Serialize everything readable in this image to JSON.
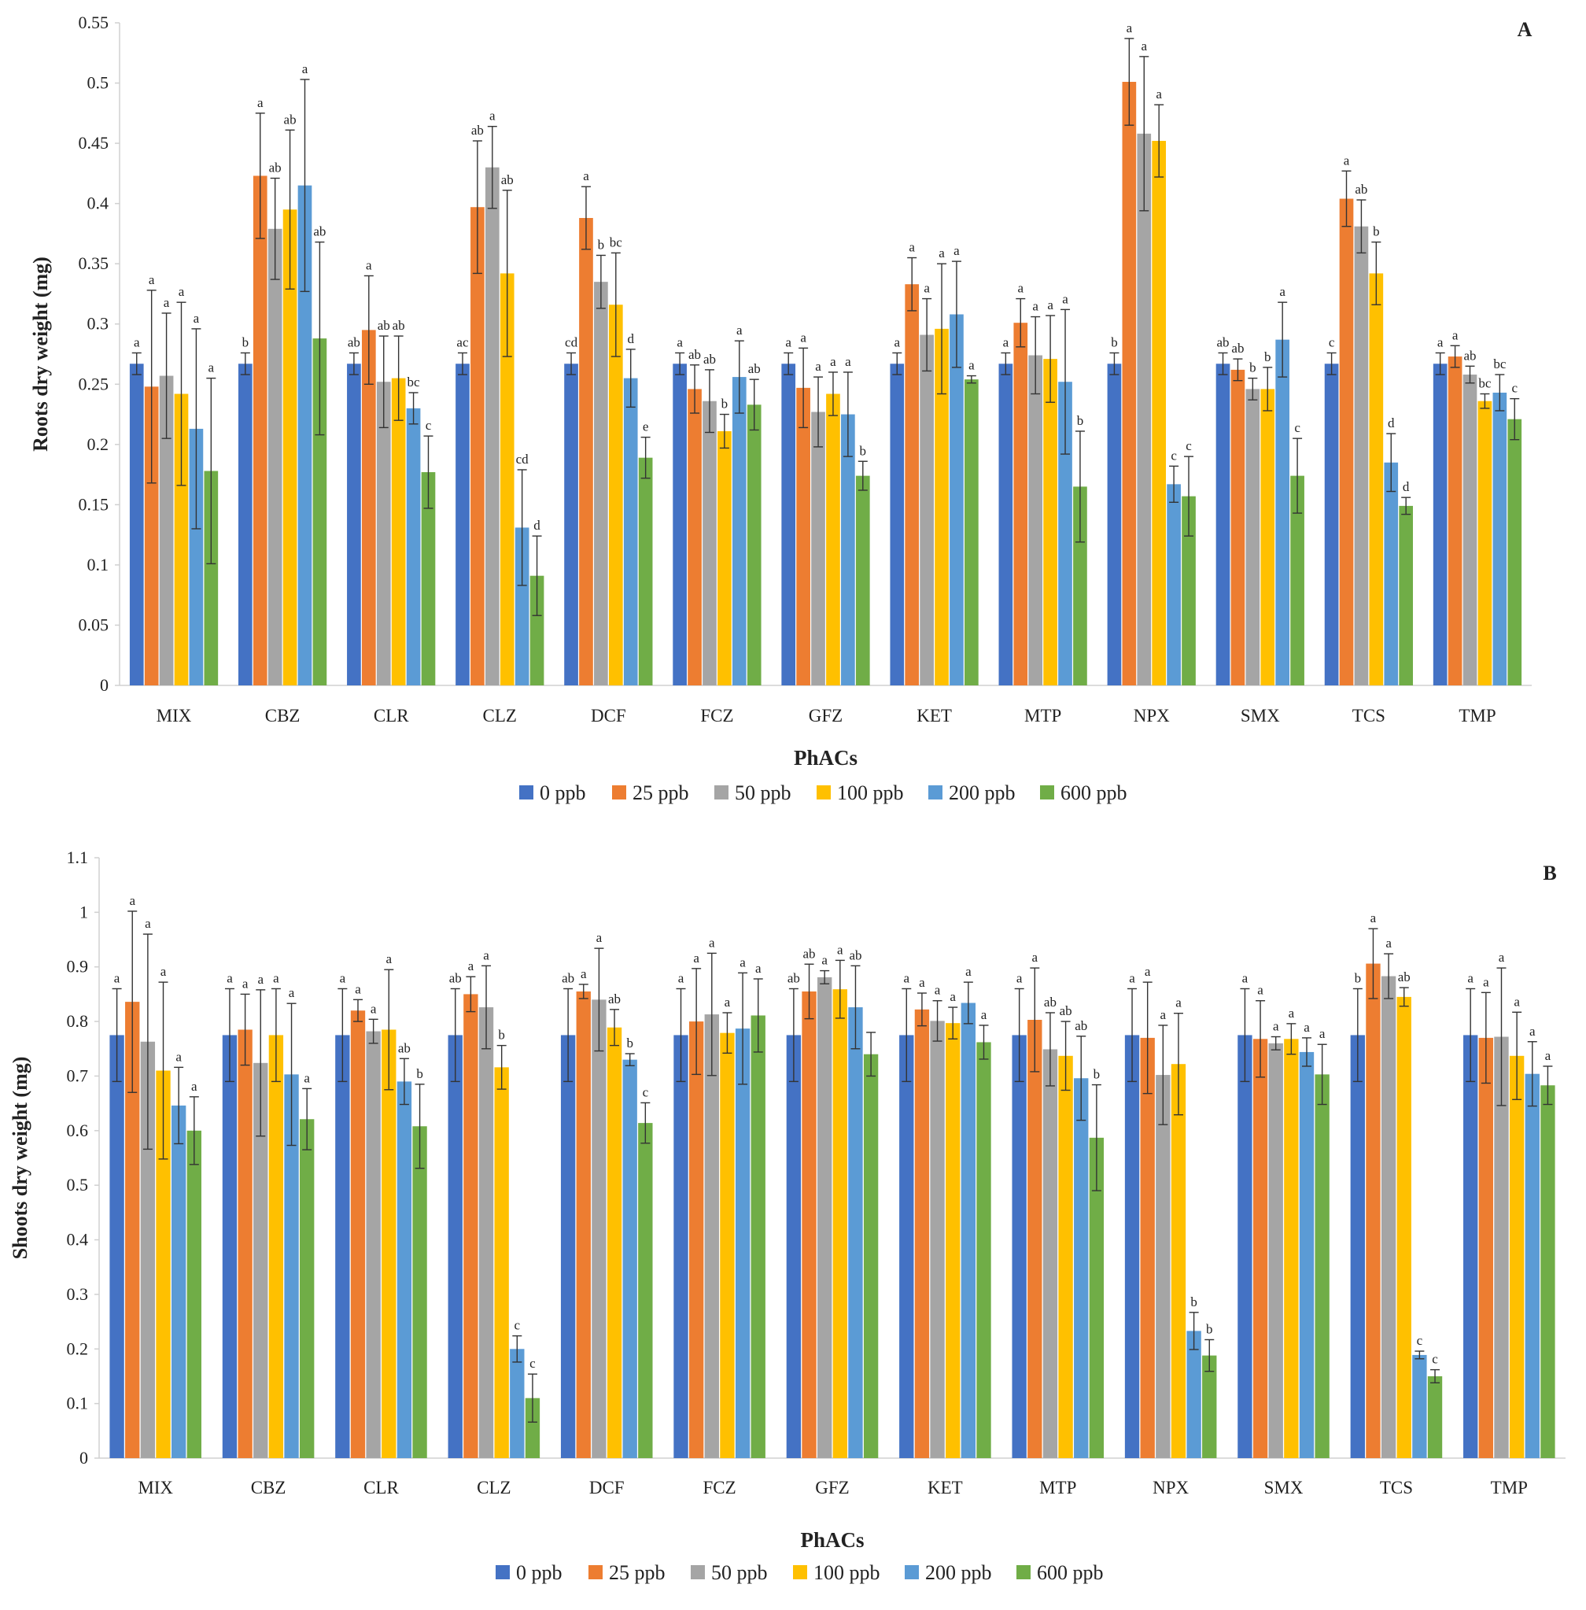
{
  "colors": [
    "#4472C4",
    "#ED7D31",
    "#A5A5A5",
    "#FFC000",
    "#5B9BD5",
    "#70AD47"
  ],
  "chart_data": [
    {
      "type": "bar",
      "panel_label": "A",
      "ylabel": "Roots dry weight  (mg)",
      "xlabel": "PhACs",
      "ylim": [
        0,
        0.55
      ],
      "yticks": [
        "0",
        "0.05",
        "0.1",
        "0.15",
        "0.2",
        "0.25",
        "0.3",
        "0.35",
        "0.4",
        "0.45",
        "0.5",
        "0.55"
      ],
      "grid": false,
      "legend_placement": "bottom",
      "categories": [
        "MIX",
        "CBZ",
        "CLR",
        "CLZ",
        "DCF",
        "FCZ",
        "GFZ",
        "KET",
        "MTP",
        "NPX",
        "SMX",
        "TCS",
        "TMP"
      ],
      "series": [
        {
          "name": "0 ppb",
          "values": [
            0.267,
            0.267,
            0.267,
            0.267,
            0.267,
            0.267,
            0.267,
            0.267,
            0.267,
            0.267,
            0.267,
            0.267,
            0.267
          ],
          "errors": [
            0.009,
            0.009,
            0.009,
            0.009,
            0.009,
            0.009,
            0.009,
            0.009,
            0.009,
            0.009,
            0.009,
            0.009,
            0.009
          ],
          "letters": [
            "a",
            "b",
            "ab",
            "ac",
            "cd",
            "a",
            "a",
            "a",
            "a",
            "b",
            "ab",
            "c",
            "a"
          ]
        },
        {
          "name": "25 ppb",
          "values": [
            0.248,
            0.423,
            0.295,
            0.397,
            0.388,
            0.246,
            0.247,
            0.333,
            0.301,
            0.501,
            0.262,
            0.404,
            0.273
          ],
          "errors": [
            0.08,
            0.052,
            0.045,
            0.055,
            0.026,
            0.02,
            0.033,
            0.022,
            0.02,
            0.036,
            0.009,
            0.023,
            0.009
          ],
          "letters": [
            "a",
            "a",
            "a",
            "ab",
            "a",
            "ab",
            "a",
            "a",
            "a",
            "a",
            "ab",
            "a",
            "a"
          ]
        },
        {
          "name": "50 ppb",
          "values": [
            0.257,
            0.379,
            0.252,
            0.43,
            0.335,
            0.236,
            0.227,
            0.291,
            0.274,
            0.458,
            0.246,
            0.381,
            0.258
          ],
          "errors": [
            0.052,
            0.042,
            0.038,
            0.034,
            0.022,
            0.026,
            0.029,
            0.03,
            0.032,
            0.064,
            0.009,
            0.022,
            0.007
          ],
          "letters": [
            "a",
            "ab",
            "ab",
            "a",
            "b",
            "ab",
            "a",
            "a",
            "a",
            "a",
            "b",
            "ab",
            "ab"
          ]
        },
        {
          "name": "100 ppb",
          "values": [
            0.242,
            0.395,
            0.255,
            0.342,
            0.316,
            0.211,
            0.242,
            0.296,
            0.271,
            0.452,
            0.246,
            0.342,
            0.236
          ],
          "errors": [
            0.076,
            0.066,
            0.035,
            0.069,
            0.043,
            0.014,
            0.018,
            0.054,
            0.036,
            0.03,
            0.018,
            0.026,
            0.006
          ],
          "letters": [
            "a",
            "ab",
            "ab",
            "ab",
            "bc",
            "b",
            "a",
            "a",
            "a",
            "a",
            "b",
            "b",
            "bc"
          ]
        },
        {
          "name": "200 ppb",
          "values": [
            0.213,
            0.415,
            0.23,
            0.131,
            0.255,
            0.256,
            0.225,
            0.308,
            0.252,
            0.167,
            0.287,
            0.185,
            0.243
          ],
          "errors": [
            0.083,
            0.088,
            0.013,
            0.048,
            0.024,
            0.03,
            0.035,
            0.044,
            0.06,
            0.015,
            0.031,
            0.024,
            0.015
          ],
          "letters": [
            "a",
            "a",
            "bc",
            "cd",
            "d",
            "a",
            "a",
            "a",
            "a",
            "c",
            "a",
            "d",
            "bc"
          ]
        },
        {
          "name": "600 ppb",
          "values": [
            0.178,
            0.288,
            0.177,
            0.091,
            0.189,
            0.233,
            0.174,
            0.254,
            0.165,
            0.157,
            0.174,
            0.149,
            0.221
          ],
          "errors": [
            0.077,
            0.08,
            0.03,
            0.033,
            0.017,
            0.021,
            0.012,
            0.003,
            0.046,
            0.033,
            0.031,
            0.007,
            0.017
          ],
          "letters": [
            "a",
            "ab",
            "c",
            "d",
            "e",
            "ab",
            "b",
            "a",
            "b",
            "c",
            "c",
            "d",
            "c"
          ]
        }
      ]
    },
    {
      "type": "bar",
      "panel_label": "B",
      "ylabel": "Shoots dry weight  (mg)",
      "xlabel": "PhACs",
      "ylim": [
        0,
        1.1
      ],
      "yticks": [
        "0",
        "0.1",
        "0.2",
        "0.3",
        "0.4",
        "0.5",
        "0.6",
        "0.7",
        "0.8",
        "0.9",
        "1",
        "1.1"
      ],
      "grid": false,
      "legend_placement": "bottom",
      "categories": [
        "MIX",
        "CBZ",
        "CLR",
        "CLZ",
        "DCF",
        "FCZ",
        "GFZ",
        "KET",
        "MTP",
        "NPX",
        "SMX",
        "TCS",
        "TMP"
      ],
      "series": [
        {
          "name": "0 ppb",
          "values": [
            0.775,
            0.775,
            0.775,
            0.775,
            0.775,
            0.775,
            0.775,
            0.775,
            0.775,
            0.775,
            0.775,
            0.775,
            0.775
          ],
          "errors": [
            0.085,
            0.085,
            0.085,
            0.085,
            0.085,
            0.085,
            0.085,
            0.085,
            0.085,
            0.085,
            0.085,
            0.085,
            0.085
          ],
          "letters": [
            "a",
            "a",
            "a",
            "ab",
            "ab",
            "a",
            "ab",
            "a",
            "a",
            "a",
            "a",
            "b",
            "a"
          ]
        },
        {
          "name": "25 ppb",
          "values": [
            0.836,
            0.785,
            0.82,
            0.85,
            0.855,
            0.8,
            0.855,
            0.822,
            0.803,
            0.77,
            0.768,
            0.906,
            0.77
          ],
          "errors": [
            0.166,
            0.065,
            0.02,
            0.032,
            0.013,
            0.097,
            0.05,
            0.03,
            0.095,
            0.102,
            0.07,
            0.064,
            0.083
          ],
          "letters": [
            "a",
            "a",
            "a",
            "a",
            "a",
            "a",
            "ab",
            "a",
            "a",
            "a",
            "a",
            "a",
            "a"
          ]
        },
        {
          "name": "50 ppb",
          "values": [
            0.763,
            0.724,
            0.782,
            0.826,
            0.84,
            0.813,
            0.881,
            0.801,
            0.749,
            0.702,
            0.76,
            0.883,
            0.772
          ],
          "errors": [
            0.197,
            0.134,
            0.022,
            0.076,
            0.094,
            0.112,
            0.012,
            0.037,
            0.067,
            0.091,
            0.012,
            0.041,
            0.126
          ],
          "letters": [
            "a",
            "a",
            "a",
            "a",
            "a",
            "a",
            "a",
            "a",
            "ab",
            "a",
            "a",
            "a",
            "a"
          ]
        },
        {
          "name": "100 ppb",
          "values": [
            0.71,
            0.775,
            0.785,
            0.716,
            0.789,
            0.779,
            0.859,
            0.797,
            0.737,
            0.722,
            0.768,
            0.845,
            0.737
          ],
          "errors": [
            0.162,
            0.085,
            0.11,
            0.04,
            0.033,
            0.037,
            0.053,
            0.029,
            0.063,
            0.093,
            0.028,
            0.017,
            0.08
          ],
          "letters": [
            "a",
            "a",
            "a",
            "b",
            "ab",
            "a",
            "a",
            "a",
            "ab",
            "a",
            "a",
            "ab",
            "a"
          ]
        },
        {
          "name": "200 ppb",
          "values": [
            0.646,
            0.703,
            0.69,
            0.2,
            0.73,
            0.787,
            0.826,
            0.834,
            0.696,
            0.233,
            0.744,
            0.189,
            0.704
          ],
          "errors": [
            0.07,
            0.13,
            0.042,
            0.024,
            0.011,
            0.102,
            0.076,
            0.038,
            0.077,
            0.034,
            0.026,
            0.007,
            0.059
          ],
          "letters": [
            "a",
            "a",
            "ab",
            "c",
            "b",
            "a",
            "ab",
            "a",
            "ab",
            "b",
            "a",
            "c",
            "a"
          ]
        },
        {
          "name": "600 ppb",
          "values": [
            0.6,
            0.621,
            0.608,
            0.11,
            0.614,
            0.811,
            0.74,
            0.762,
            0.587,
            0.188,
            0.703,
            0.15,
            0.683
          ],
          "errors": [
            0.062,
            0.056,
            0.077,
            0.044,
            0.037,
            0.067,
            0.04,
            0.031,
            0.097,
            0.029,
            0.055,
            0.012,
            0.035
          ],
          "letters": [
            "a",
            "a",
            "b",
            "c",
            "c",
            "a",
            "",
            "a",
            "b",
            "b",
            "a",
            "c",
            "a"
          ]
        }
      ]
    }
  ]
}
